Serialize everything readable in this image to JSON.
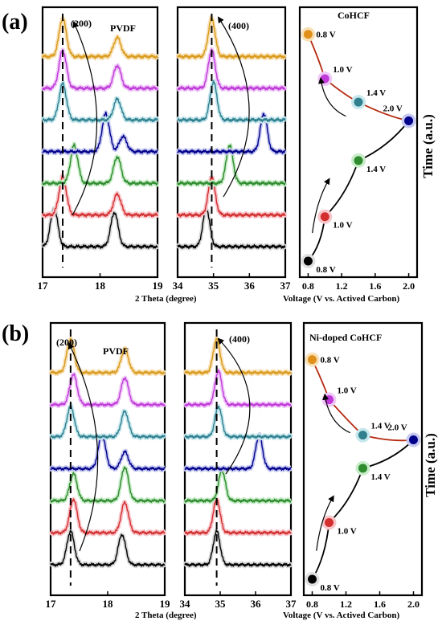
{
  "figure": {
    "panel_a_label": "(a)",
    "panel_b_label": "(b)",
    "xlabel_theta": "2 Theta (degree)",
    "xlabel_voltage": "Voltage (V vs. Actived Carbon)",
    "ylabel_time": "Time (a.u.)",
    "colors": [
      "#000000",
      "#d32f2f",
      "#2e8b2e",
      "#00008b",
      "#2f7f8f",
      "#c03ad9",
      "#d99a1a"
    ],
    "shadow_colors": [
      "#d9d9d9",
      "#f7c7cc",
      "#c9ecc9",
      "#c7c9f0",
      "#c6e7ec",
      "#efc9f7",
      "#f7e1b8"
    ]
  },
  "chart_data": [
    {
      "panel": "a-left",
      "type": "line",
      "sample": "CoHCF",
      "title": "PVDF",
      "peak_label": "(200)",
      "xlabel": "2 Theta (degree)",
      "xlim": [
        17,
        19
      ],
      "xticks": [
        "17",
        "18",
        "19"
      ],
      "reference_line_x": 17.35,
      "series": [
        {
          "values": [
            [
              17.2,
              1.0
            ],
            [
              18.25,
              0.9
            ]
          ]
        },
        {
          "values": [
            [
              17.35,
              1.0
            ],
            [
              18.3,
              0.55
            ]
          ]
        },
        {
          "values": [
            [
              17.55,
              1.0
            ],
            [
              18.3,
              0.7
            ]
          ]
        },
        {
          "values": [
            [
              18.1,
              1.0
            ],
            [
              18.4,
              0.4
            ]
          ]
        },
        {
          "values": [
            [
              17.35,
              0.95
            ],
            [
              18.3,
              0.55
            ]
          ]
        },
        {
          "values": [
            [
              17.35,
              1.0
            ],
            [
              18.3,
              0.6
            ]
          ]
        },
        {
          "values": [
            [
              17.35,
              1.0
            ],
            [
              18.3,
              0.5
            ]
          ]
        }
      ]
    },
    {
      "panel": "a-middle",
      "type": "line",
      "sample": "CoHCF",
      "peak_label": "(400)",
      "xlim": [
        34,
        37
      ],
      "xticks": [
        "34",
        "35",
        "36",
        "37"
      ],
      "reference_line_x": 34.95,
      "series": [
        {
          "values": [
            [
              34.8,
              1.0
            ]
          ]
        },
        {
          "values": [
            [
              34.95,
              1.0
            ]
          ]
        },
        {
          "values": [
            [
              35.45,
              1.0
            ]
          ]
        },
        {
          "values": [
            [
              36.4,
              1.0
            ]
          ]
        },
        {
          "values": [
            [
              35.0,
              1.0
            ]
          ]
        },
        {
          "values": [
            [
              34.95,
              1.0
            ]
          ]
        },
        {
          "values": [
            [
              34.95,
              1.0
            ]
          ]
        }
      ]
    },
    {
      "panel": "a-right",
      "type": "scatter",
      "title": "CoHCF",
      "xlabel": "Voltage (V vs. Actived Carbon)",
      "ylabel": "Time (a.u.)",
      "xlim": [
        0.7,
        2.1
      ],
      "xticks": [
        "0.8",
        "1.2",
        "1.6",
        "2.0"
      ],
      "points": [
        {
          "voltage": 0.8,
          "time": 0.0,
          "label": "0.8 V",
          "stage": "charge"
        },
        {
          "voltage": 1.0,
          "time": 0.19,
          "label": "1.0 V",
          "stage": "charge"
        },
        {
          "voltage": 1.4,
          "time": 0.43,
          "label": "1.4 V",
          "stage": "charge"
        },
        {
          "voltage": 2.0,
          "time": 0.6,
          "label": "2.0 V",
          "stage": "turn"
        },
        {
          "voltage": 1.4,
          "time": 0.68,
          "label": "1.4 V",
          "stage": "discharge"
        },
        {
          "voltage": 1.0,
          "time": 0.78,
          "label": "1.0 V",
          "stage": "discharge"
        },
        {
          "voltage": 0.8,
          "time": 0.97,
          "label": "0.8 V",
          "stage": "discharge"
        }
      ]
    },
    {
      "panel": "b-left",
      "type": "line",
      "sample": "Ni-doped CoHCF",
      "title": "PVDF",
      "peak_label": "(200)",
      "xlabel": "2 Theta (degree)",
      "xlim": [
        17,
        19
      ],
      "xticks": [
        "17",
        "18",
        "19"
      ],
      "reference_line_x": 17.35,
      "series": [
        {
          "values": [
            [
              17.35,
              1.0
            ],
            [
              18.25,
              0.9
            ]
          ]
        },
        {
          "values": [
            [
              17.4,
              1.0
            ],
            [
              18.3,
              0.9
            ]
          ]
        },
        {
          "values": [
            [
              17.4,
              0.8
            ],
            [
              18.3,
              1.0
            ]
          ]
        },
        {
          "values": [
            [
              17.9,
              1.0
            ],
            [
              18.3,
              0.5
            ]
          ]
        },
        {
          "values": [
            [
              17.35,
              0.9
            ],
            [
              18.3,
              0.75
            ]
          ]
        },
        {
          "values": [
            [
              17.4,
              0.9
            ],
            [
              18.3,
              0.8
            ]
          ]
        },
        {
          "values": [
            [
              17.35,
              1.0
            ],
            [
              18.3,
              0.7
            ]
          ]
        }
      ]
    },
    {
      "panel": "b-middle",
      "type": "line",
      "sample": "Ni-doped CoHCF",
      "peak_label": "(400)",
      "xlim": [
        34,
        37
      ],
      "xticks": [
        "34",
        "35",
        "36",
        "37"
      ],
      "reference_line_x": 34.9,
      "series": [
        {
          "values": [
            [
              34.9,
              1.0
            ]
          ]
        },
        {
          "values": [
            [
              34.9,
              1.0
            ]
          ]
        },
        {
          "values": [
            [
              35.05,
              0.9
            ]
          ]
        },
        {
          "values": [
            [
              36.1,
              1.0
            ]
          ]
        },
        {
          "values": [
            [
              34.95,
              0.9
            ]
          ]
        },
        {
          "values": [
            [
              34.95,
              1.0
            ]
          ]
        },
        {
          "values": [
            [
              34.9,
              1.0
            ]
          ]
        }
      ]
    },
    {
      "panel": "b-right",
      "type": "scatter",
      "title": "Ni-doped CoHCF",
      "xlabel": "Voltage (V vs. Actived Carbon)",
      "ylabel": "Time (a.u.)",
      "xlim": [
        0.7,
        2.1
      ],
      "xticks": [
        "0.8",
        "1.2",
        "1.6",
        "2.0"
      ],
      "points": [
        {
          "voltage": 0.8,
          "time": 0.0,
          "label": "0.8 V",
          "stage": "charge"
        },
        {
          "voltage": 1.0,
          "time": 0.24,
          "label": "1.0 V",
          "stage": "charge"
        },
        {
          "voltage": 1.4,
          "time": 0.47,
          "label": "1.4 V",
          "stage": "charge"
        },
        {
          "voltage": 2.0,
          "time": 0.59,
          "label": "2.0 V",
          "stage": "turn"
        },
        {
          "voltage": 1.4,
          "time": 0.61,
          "label": "1.4 V",
          "stage": "discharge"
        },
        {
          "voltage": 1.0,
          "time": 0.76,
          "label": "1.0 V",
          "stage": "discharge"
        },
        {
          "voltage": 0.8,
          "time": 0.93,
          "label": "0.8 V",
          "stage": "discharge"
        }
      ]
    }
  ]
}
